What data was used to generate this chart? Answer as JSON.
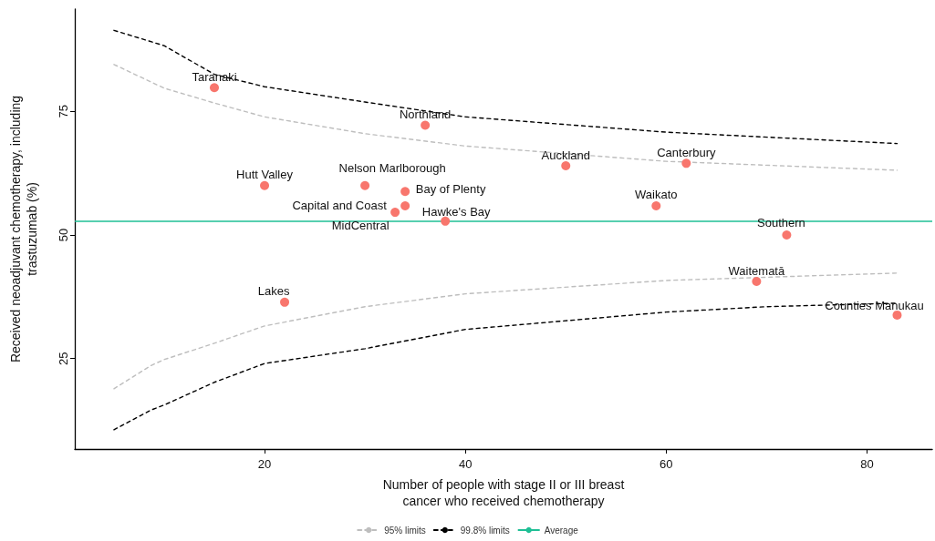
{
  "chart_data": {
    "type": "scatter",
    "xlabel": "Number of people with stage II or III breast\ncancer who received chemotherapy",
    "ylabel": "Received neoadjuvant chemotherapy, including\ntrastuzumab (%)",
    "xlim": [
      1.1,
      86.5
    ],
    "xticks": [
      20,
      40,
      60,
      80
    ],
    "ylim": [
      6.7,
      95.7
    ],
    "yticks": [
      25,
      50,
      75
    ],
    "grid": false,
    "legend": "bottom",
    "marker": "circle",
    "series": [
      {
        "color": "#f8766d",
        "x": [
          15,
          36,
          50,
          62,
          20,
          30,
          34,
          34,
          33,
          38,
          59,
          72,
          69,
          22,
          83
        ],
        "values": [
          79.8,
          72.2,
          64.0,
          64.5,
          60.0,
          60.0,
          58.8,
          55.9,
          54.6,
          52.8,
          55.9,
          50.0,
          40.6,
          36.4,
          33.8
        ]
      },
      {
        "type": "line",
        "name": "95% limits",
        "color": "#bebebe",
        "line_style": "dashed",
        "marker": "none",
        "x": [
          5,
          10,
          15,
          20,
          30,
          40,
          60,
          83,
          null,
          5,
          8.7,
          10,
          15,
          20,
          30,
          40,
          60,
          83
        ],
        "values": [
          84.5,
          79.7,
          76.7,
          73.9,
          70.5,
          68.0,
          64.9,
          63.1,
          null,
          18.9,
          23.6,
          24.8,
          28.1,
          31.6,
          35.5,
          38.1,
          40.8,
          42.3
        ]
      },
      {
        "type": "line",
        "name": "99.8% limits",
        "color": "#000000",
        "line_style": "dashed",
        "marker": "none",
        "x": [
          5,
          10,
          15,
          20,
          30,
          40,
          60,
          83,
          null,
          5,
          8.7,
          10,
          15,
          20,
          30,
          40,
          60,
          70,
          83
        ],
        "values": [
          91.4,
          88.3,
          82.5,
          80.0,
          76.9,
          73.9,
          70.8,
          68.5,
          null,
          10.6,
          14.6,
          15.6,
          20.2,
          24.0,
          27.0,
          30.9,
          34.4,
          35.5,
          36.2
        ]
      }
    ],
    "ref_lines": [
      {
        "axis": "y",
        "value": 52.8,
        "label": "Average",
        "color": "#1fbf95"
      }
    ],
    "annotations": [
      {
        "text": "Taranaki",
        "x": 15,
        "y": 79.8
      },
      {
        "text": "Northland",
        "x": 36,
        "y": 72.2
      },
      {
        "text": "Auckland",
        "x": 50,
        "y": 64.0
      },
      {
        "text": "Canterbury",
        "x": 62,
        "y": 64.5
      },
      {
        "text": "Hutt Valley",
        "x": 20,
        "y": 60.0
      },
      {
        "text": "Nelson Marlborough",
        "x": 30,
        "y": 60.0
      },
      {
        "text": "Bay of Plenty",
        "x": 34,
        "y": 58.8
      },
      {
        "text": "Capital and Coast",
        "x": 34,
        "y": 55.9
      },
      {
        "text": "MidCentral",
        "x": 33,
        "y": 54.6
      },
      {
        "text": "Hawke's Bay",
        "x": 38,
        "y": 52.8
      },
      {
        "text": "Waikato",
        "x": 59,
        "y": 55.9
      },
      {
        "text": "Southern",
        "x": 72,
        "y": 50.0
      },
      {
        "text": "Waitematā",
        "x": 69,
        "y": 40.6
      },
      {
        "text": "Lakes",
        "x": 22,
        "y": 36.4
      },
      {
        "text": "Counties Manukau",
        "x": 83,
        "y": 33.8
      }
    ]
  }
}
